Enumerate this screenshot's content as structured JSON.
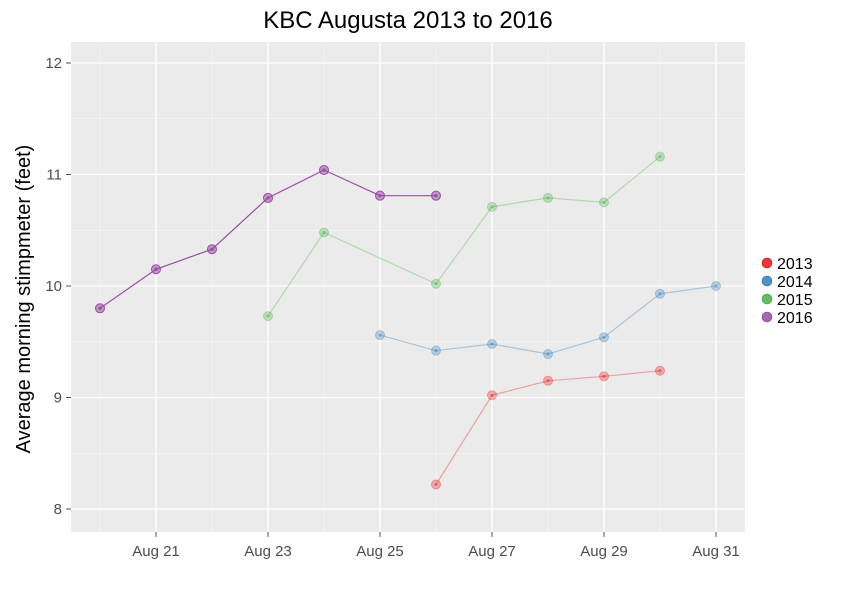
{
  "chart_data": {
    "type": "line",
    "title": "KBC Augusta 2013 to 2016",
    "xlabel": "",
    "ylabel": "Average morning stimpmeter (feet)",
    "x_ticks": [
      "Aug 21",
      "Aug 23",
      "Aug 25",
      "Aug 27",
      "Aug 29",
      "Aug 31"
    ],
    "y_ticks": [
      "8",
      "9",
      "10",
      "11",
      "12"
    ],
    "xlim": [
      "Aug 19.5",
      "Aug 31.5"
    ],
    "ylim": [
      7.8,
      12.2
    ],
    "grid": true,
    "legend_position": "right",
    "series": [
      {
        "name": "2013",
        "color": "#E41A1C",
        "x": [
          "Aug 26",
          "Aug 27",
          "Aug 28",
          "Aug 29",
          "Aug 30"
        ],
        "y": [
          8.22,
          9.02,
          9.15,
          9.19,
          9.24
        ]
      },
      {
        "name": "2014",
        "color": "#377EB8",
        "x": [
          "Aug 25",
          "Aug 26",
          "Aug 27",
          "Aug 28",
          "Aug 29",
          "Aug 30",
          "Aug 31"
        ],
        "y": [
          9.56,
          9.42,
          9.48,
          9.39,
          9.54,
          9.93,
          10.0
        ]
      },
      {
        "name": "2015",
        "color": "#4DAF4A",
        "x": [
          "Aug 23",
          "Aug 24",
          "Aug 26",
          "Aug 27",
          "Aug 28",
          "Aug 29",
          "Aug 30"
        ],
        "y": [
          9.73,
          10.48,
          10.02,
          10.71,
          10.79,
          10.75,
          11.16
        ]
      },
      {
        "name": "2016",
        "color": "#984EA3",
        "x": [
          "Aug 20",
          "Aug 21",
          "Aug 22",
          "Aug 23",
          "Aug 24",
          "Aug 25",
          "Aug 26"
        ],
        "y": [
          9.8,
          10.15,
          10.33,
          10.79,
          11.04,
          10.81,
          10.81
        ]
      }
    ]
  },
  "style": {
    "panel_background": "#EBEBEB",
    "grid_major": "#FFFFFF",
    "faded_series": [
      "2013",
      "2014",
      "2015"
    ],
    "highlight_series": "2016"
  }
}
